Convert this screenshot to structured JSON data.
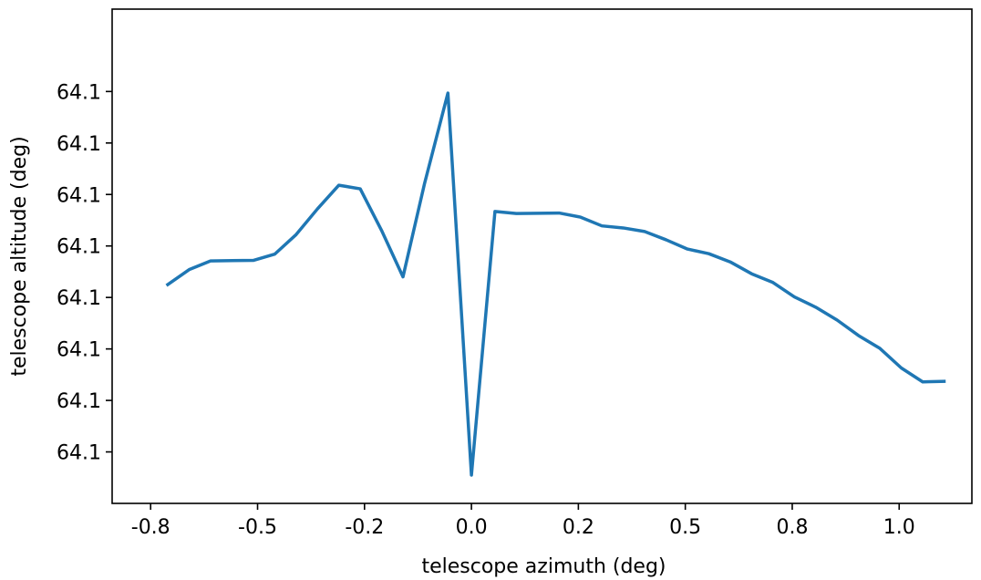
{
  "chart_data": {
    "type": "line",
    "title": "",
    "xlabel": "telescope azimuth (deg)",
    "ylabel": "telescope altitude (deg)",
    "xlim": [
      -0.84,
      1.17
    ],
    "ylim": [
      0,
      9.6
    ],
    "xticks": [
      {
        "value": -0.75,
        "label": "-0.8"
      },
      {
        "value": -0.5,
        "label": "-0.5"
      },
      {
        "value": -0.25,
        "label": "-0.2"
      },
      {
        "value": 0.0,
        "label": "0.0"
      },
      {
        "value": 0.25,
        "label": "0.2"
      },
      {
        "value": 0.5,
        "label": "0.5"
      },
      {
        "value": 0.75,
        "label": "0.8"
      },
      {
        "value": 1.0,
        "label": "1.0"
      }
    ],
    "yticks": [
      {
        "value": 1,
        "label": "64.1"
      },
      {
        "value": 2,
        "label": "64.1"
      },
      {
        "value": 3,
        "label": "64.1"
      },
      {
        "value": 4,
        "label": "64.1"
      },
      {
        "value": 5,
        "label": "64.1"
      },
      {
        "value": 6,
        "label": "64.1"
      },
      {
        "value": 7,
        "label": "64.1"
      },
      {
        "value": 8,
        "label": "64.1"
      }
    ],
    "grid": false,
    "color": "#1f77b4",
    "series": [
      {
        "x": [
          -0.71,
          -0.66,
          -0.61,
          -0.51,
          -0.46,
          -0.41,
          -0.36,
          -0.31,
          -0.26,
          -0.21,
          -0.16,
          -0.11,
          -0.055,
          0.0,
          0.055,
          0.105,
          0.205,
          0.255,
          0.305,
          0.355,
          0.405,
          0.455,
          0.505,
          0.555,
          0.605,
          0.655,
          0.705,
          0.755,
          0.805,
          0.855,
          0.905,
          0.955,
          1.005,
          1.055,
          1.105
        ],
        "y": [
          4.25,
          4.54,
          4.71,
          4.72,
          4.84,
          5.22,
          5.72,
          6.18,
          6.11,
          5.3,
          4.4,
          6.2,
          7.97,
          0.55,
          5.67,
          5.63,
          5.64,
          5.56,
          5.39,
          5.35,
          5.28,
          5.12,
          4.94,
          4.85,
          4.69,
          4.46,
          4.29,
          4.01,
          3.81,
          3.56,
          3.26,
          3.01,
          2.63,
          2.36,
          2.37
        ]
      }
    ]
  }
}
